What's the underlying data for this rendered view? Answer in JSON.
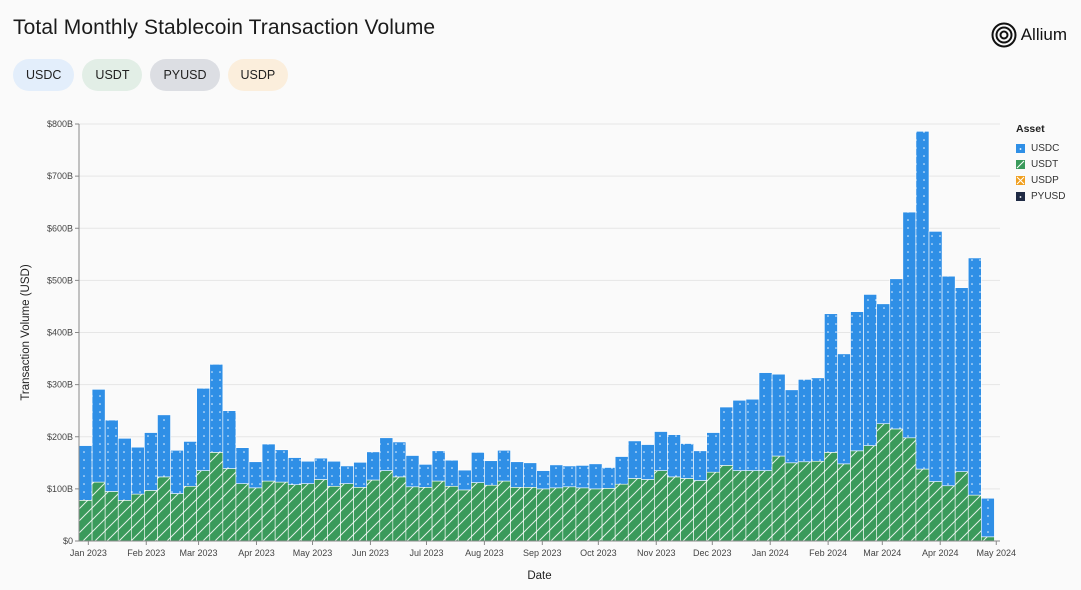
{
  "title": "Total Monthly Stablecoin Transaction Volume",
  "logo": {
    "text": "Allium",
    "icon": "allium-logo-icon"
  },
  "pills": [
    {
      "label": "USDC",
      "color": "#e3eefb"
    },
    {
      "label": "USDT",
      "color": "#e2eee6"
    },
    {
      "label": "PYUSD",
      "color": "#dcdee3"
    },
    {
      "label": "USDP",
      "color": "#fbeedc"
    }
  ],
  "legend": {
    "title": "Asset",
    "items": [
      {
        "label": "USDC",
        "color": "#2f8fe6",
        "pattern": "dots"
      },
      {
        "label": "USDT",
        "color": "#3a9a5b",
        "pattern": "hatch"
      },
      {
        "label": "USDP",
        "color": "#f0a020",
        "pattern": "cross"
      },
      {
        "label": "PYUSD",
        "color": "#1f2a44",
        "pattern": "dots"
      }
    ]
  },
  "chart_data": {
    "type": "bar",
    "stacked": true,
    "xlabel": "Date",
    "ylabel": "Transaction Volume (USD)",
    "ylim": [
      0,
      800
    ],
    "y_ticks": [
      0,
      100,
      200,
      300,
      400,
      500,
      600,
      700,
      800
    ],
    "y_tick_labels": [
      "$0",
      "$100B",
      "$200B",
      "$300B",
      "$400B",
      "$500B",
      "$600B",
      "$700B",
      "$800B"
    ],
    "x_range": [
      "2022-12-27",
      "2024-05-03"
    ],
    "x_tick_labels": [
      {
        "label": "Jan 2023",
        "date": "2023-01-01"
      },
      {
        "label": "Feb 2023",
        "date": "2023-02-01"
      },
      {
        "label": "Mar 2023",
        "date": "2023-03-01"
      },
      {
        "label": "Apr 2023",
        "date": "2023-04-01"
      },
      {
        "label": "May 2023",
        "date": "2023-05-01"
      },
      {
        "label": "Jun 2023",
        "date": "2023-06-01"
      },
      {
        "label": "Jul 2023",
        "date": "2023-07-01"
      },
      {
        "label": "Aug 2023",
        "date": "2023-08-01"
      },
      {
        "label": "Sep 2023",
        "date": "2023-09-01"
      },
      {
        "label": "Oct 2023",
        "date": "2023-10-01"
      },
      {
        "label": "Nov 2023",
        "date": "2023-11-01"
      },
      {
        "label": "Dec 2023",
        "date": "2023-12-01"
      },
      {
        "label": "Jan 2024",
        "date": "2024-01-01"
      },
      {
        "label": "Feb 2024",
        "date": "2024-02-01"
      },
      {
        "label": "Mar 2024",
        "date": "2024-03-01"
      },
      {
        "label": "Apr 2024",
        "date": "2024-04-01"
      },
      {
        "label": "May 2024",
        "date": "2024-05-01"
      }
    ],
    "bar_width_days": 7,
    "gridlines": true,
    "legend_position": "top-right",
    "series": [
      {
        "name": "USDT",
        "color": "#3a9a5b",
        "pattern": "hatch",
        "points": [
          [
            "2022-12-27",
            78
          ],
          [
            "2023-01-03",
            113
          ],
          [
            "2023-01-10",
            95
          ],
          [
            "2023-01-17",
            78
          ],
          [
            "2023-01-24",
            90
          ],
          [
            "2023-01-31",
            97
          ],
          [
            "2023-02-07",
            123
          ],
          [
            "2023-02-14",
            91
          ],
          [
            "2023-02-21",
            105
          ],
          [
            "2023-02-28",
            135
          ],
          [
            "2023-03-07",
            170
          ],
          [
            "2023-03-14",
            139
          ],
          [
            "2023-03-21",
            110
          ],
          [
            "2023-03-28",
            102
          ],
          [
            "2023-04-04",
            115
          ],
          [
            "2023-04-11",
            113
          ],
          [
            "2023-04-18",
            108
          ],
          [
            "2023-04-25",
            110
          ],
          [
            "2023-05-02",
            118
          ],
          [
            "2023-05-09",
            105
          ],
          [
            "2023-05-16",
            110
          ],
          [
            "2023-05-23",
            103
          ],
          [
            "2023-05-30",
            117
          ],
          [
            "2023-06-06",
            135
          ],
          [
            "2023-06-13",
            123
          ],
          [
            "2023-06-20",
            104
          ],
          [
            "2023-06-27",
            103
          ],
          [
            "2023-07-04",
            115
          ],
          [
            "2023-07-11",
            105
          ],
          [
            "2023-07-18",
            98
          ],
          [
            "2023-07-25",
            112
          ],
          [
            "2023-08-01",
            107
          ],
          [
            "2023-08-08",
            115
          ],
          [
            "2023-08-15",
            103
          ],
          [
            "2023-08-22",
            103
          ],
          [
            "2023-08-29",
            100
          ],
          [
            "2023-09-05",
            102
          ],
          [
            "2023-09-12",
            104
          ],
          [
            "2023-09-19",
            102
          ],
          [
            "2023-09-26",
            100
          ],
          [
            "2023-10-03",
            101
          ],
          [
            "2023-10-10",
            109
          ],
          [
            "2023-10-17",
            120
          ],
          [
            "2023-10-24",
            118
          ],
          [
            "2023-10-31",
            135
          ],
          [
            "2023-11-07",
            123
          ],
          [
            "2023-11-14",
            120
          ],
          [
            "2023-11-21",
            116
          ],
          [
            "2023-11-28",
            132
          ],
          [
            "2023-12-05",
            145
          ],
          [
            "2023-12-12",
            135
          ],
          [
            "2023-12-19",
            135
          ],
          [
            "2023-12-26",
            135
          ],
          [
            "2024-01-02",
            163
          ],
          [
            "2024-01-09",
            150
          ],
          [
            "2024-01-16",
            152
          ],
          [
            "2024-01-23",
            153
          ],
          [
            "2024-01-30",
            170
          ],
          [
            "2024-02-06",
            148
          ],
          [
            "2024-02-13",
            173
          ],
          [
            "2024-02-20",
            183
          ],
          [
            "2024-02-27",
            225
          ],
          [
            "2024-03-05",
            215
          ],
          [
            "2024-03-12",
            198
          ],
          [
            "2024-03-19",
            138
          ],
          [
            "2024-03-26",
            114
          ],
          [
            "2024-04-02",
            106
          ],
          [
            "2024-04-09",
            133
          ],
          [
            "2024-04-16",
            88
          ],
          [
            "2024-04-23",
            8
          ]
        ]
      },
      {
        "name": "USDC",
        "color": "#2f8fe6",
        "pattern": "dots",
        "points": [
          [
            "2022-12-27",
            105
          ],
          [
            "2023-01-03",
            178
          ],
          [
            "2023-01-10",
            137
          ],
          [
            "2023-01-17",
            119
          ],
          [
            "2023-01-24",
            90
          ],
          [
            "2023-01-31",
            111
          ],
          [
            "2023-02-07",
            119
          ],
          [
            "2023-02-14",
            83
          ],
          [
            "2023-02-21",
            86
          ],
          [
            "2023-02-28",
            158
          ],
          [
            "2023-03-07",
            169
          ],
          [
            "2023-03-14",
            111
          ],
          [
            "2023-03-21",
            69
          ],
          [
            "2023-03-28",
            50
          ],
          [
            "2023-04-04",
            71
          ],
          [
            "2023-04-11",
            62
          ],
          [
            "2023-04-18",
            52
          ],
          [
            "2023-04-25",
            43
          ],
          [
            "2023-05-02",
            41
          ],
          [
            "2023-05-09",
            48
          ],
          [
            "2023-05-16",
            34
          ],
          [
            "2023-05-23",
            48
          ],
          [
            "2023-05-30",
            54
          ],
          [
            "2023-06-06",
            63
          ],
          [
            "2023-06-13",
            67
          ],
          [
            "2023-06-20",
            60
          ],
          [
            "2023-06-27",
            44
          ],
          [
            "2023-07-04",
            58
          ],
          [
            "2023-07-11",
            50
          ],
          [
            "2023-07-18",
            38
          ],
          [
            "2023-07-25",
            58
          ],
          [
            "2023-08-01",
            47
          ],
          [
            "2023-08-08",
            59
          ],
          [
            "2023-08-15",
            49
          ],
          [
            "2023-08-22",
            47
          ],
          [
            "2023-08-29",
            35
          ],
          [
            "2023-09-05",
            44
          ],
          [
            "2023-09-12",
            40
          ],
          [
            "2023-09-19",
            43
          ],
          [
            "2023-09-26",
            48
          ],
          [
            "2023-10-03",
            40
          ],
          [
            "2023-10-10",
            53
          ],
          [
            "2023-10-17",
            72
          ],
          [
            "2023-10-24",
            67
          ],
          [
            "2023-10-31",
            75
          ],
          [
            "2023-11-07",
            81
          ],
          [
            "2023-11-14",
            67
          ],
          [
            "2023-11-21",
            57
          ],
          [
            "2023-11-28",
            76
          ],
          [
            "2023-12-05",
            112
          ],
          [
            "2023-12-12",
            135
          ],
          [
            "2023-12-19",
            137
          ],
          [
            "2023-12-26",
            188
          ],
          [
            "2024-01-02",
            157
          ],
          [
            "2024-01-09",
            140
          ],
          [
            "2024-01-16",
            158
          ],
          [
            "2024-01-23",
            160
          ],
          [
            "2024-01-30",
            266
          ],
          [
            "2024-02-06",
            211
          ],
          [
            "2024-02-13",
            267
          ],
          [
            "2024-02-20",
            290
          ],
          [
            "2024-02-27",
            230
          ],
          [
            "2024-03-05",
            288
          ],
          [
            "2024-03-12",
            433
          ],
          [
            "2024-03-19",
            648
          ],
          [
            "2024-03-26",
            480
          ],
          [
            "2024-04-02",
            402
          ],
          [
            "2024-04-09",
            353
          ],
          [
            "2024-04-16",
            455
          ],
          [
            "2024-04-23",
            74
          ]
        ]
      },
      {
        "name": "USDP",
        "color": "#f0a020",
        "pattern": "cross",
        "points": []
      },
      {
        "name": "PYUSD",
        "color": "#1f2a44",
        "pattern": "dots",
        "points": []
      }
    ]
  }
}
